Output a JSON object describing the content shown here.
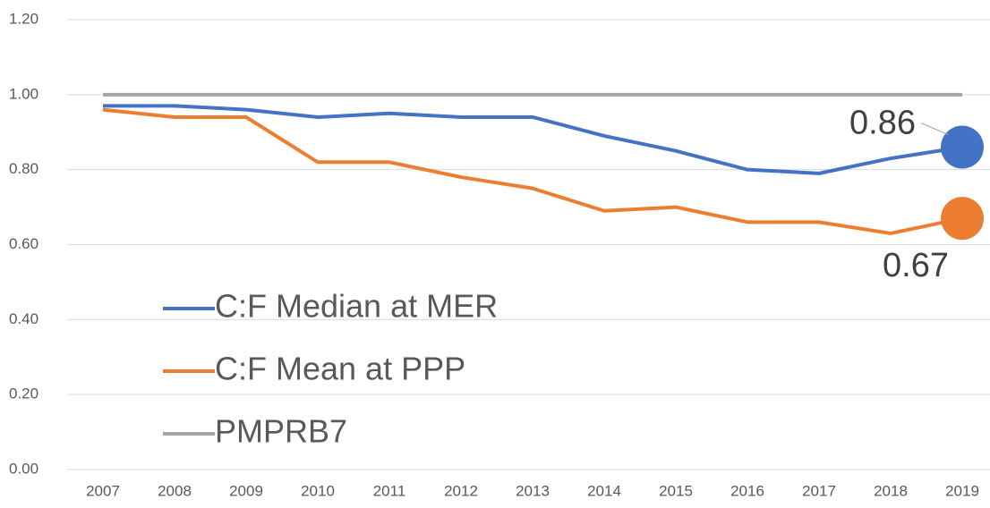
{
  "chart_data": {
    "type": "line",
    "categories": [
      "2007",
      "2008",
      "2009",
      "2010",
      "2011",
      "2012",
      "2013",
      "2014",
      "2015",
      "2016",
      "2017",
      "2018",
      "2019"
    ],
    "series": [
      {
        "name": "C:F Median at MER",
        "color": "#4472c4",
        "values": [
          0.97,
          0.97,
          0.96,
          0.94,
          0.95,
          0.94,
          0.94,
          0.89,
          0.85,
          0.8,
          0.79,
          0.83,
          0.86
        ]
      },
      {
        "name": "C:F Mean at PPP",
        "color": "#ed7d31",
        "values": [
          0.96,
          0.94,
          0.94,
          0.82,
          0.82,
          0.78,
          0.75,
          0.69,
          0.7,
          0.66,
          0.66,
          0.63,
          0.67
        ]
      },
      {
        "name": "PMPRB7",
        "color": "#a5a5a5",
        "values": [
          1,
          1,
          1,
          1,
          1,
          1,
          1,
          1,
          1,
          1,
          1,
          1,
          1
        ]
      }
    ],
    "ylim": [
      0,
      1.2
    ],
    "yticks": [
      {
        "value": 0,
        "label": "0.00"
      },
      {
        "value": 0.2,
        "label": "0.20"
      },
      {
        "value": 0.4,
        "label": "0.40"
      },
      {
        "value": 0.6,
        "label": "0.60"
      },
      {
        "value": 0.8,
        "label": "0.80"
      },
      {
        "value": 1,
        "label": "1.00"
      },
      {
        "value": 1.2,
        "label": "1.20"
      }
    ],
    "grid": true,
    "legend": "lower left"
  }
}
